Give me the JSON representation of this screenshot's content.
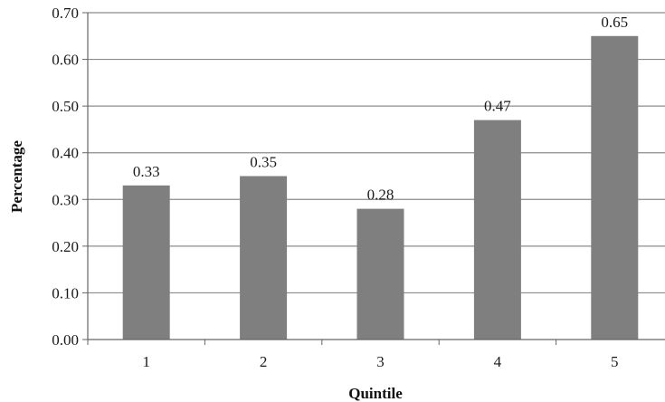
{
  "chart_data": {
    "type": "bar",
    "categories": [
      "1",
      "2",
      "3",
      "4",
      "5"
    ],
    "values": [
      0.33,
      0.35,
      0.28,
      0.47,
      0.65
    ],
    "data_labels": [
      "0.33",
      "0.35",
      "0.28",
      "0.47",
      "0.65"
    ],
    "xlabel": "Quintile",
    "ylabel": "Percentage",
    "ylim": [
      0,
      0.7
    ],
    "yticks": [
      "0.00",
      "0.10",
      "0.20",
      "0.30",
      "0.40",
      "0.50",
      "0.60",
      "0.70"
    ],
    "ytick_values": [
      0,
      0.1,
      0.2,
      0.3,
      0.4,
      0.5,
      0.6,
      0.7
    ],
    "grid": true,
    "legend": "none",
    "colors": {
      "bar": "#7f7f7f",
      "grid": "#8c8c8c",
      "axis": "#666666"
    }
  }
}
